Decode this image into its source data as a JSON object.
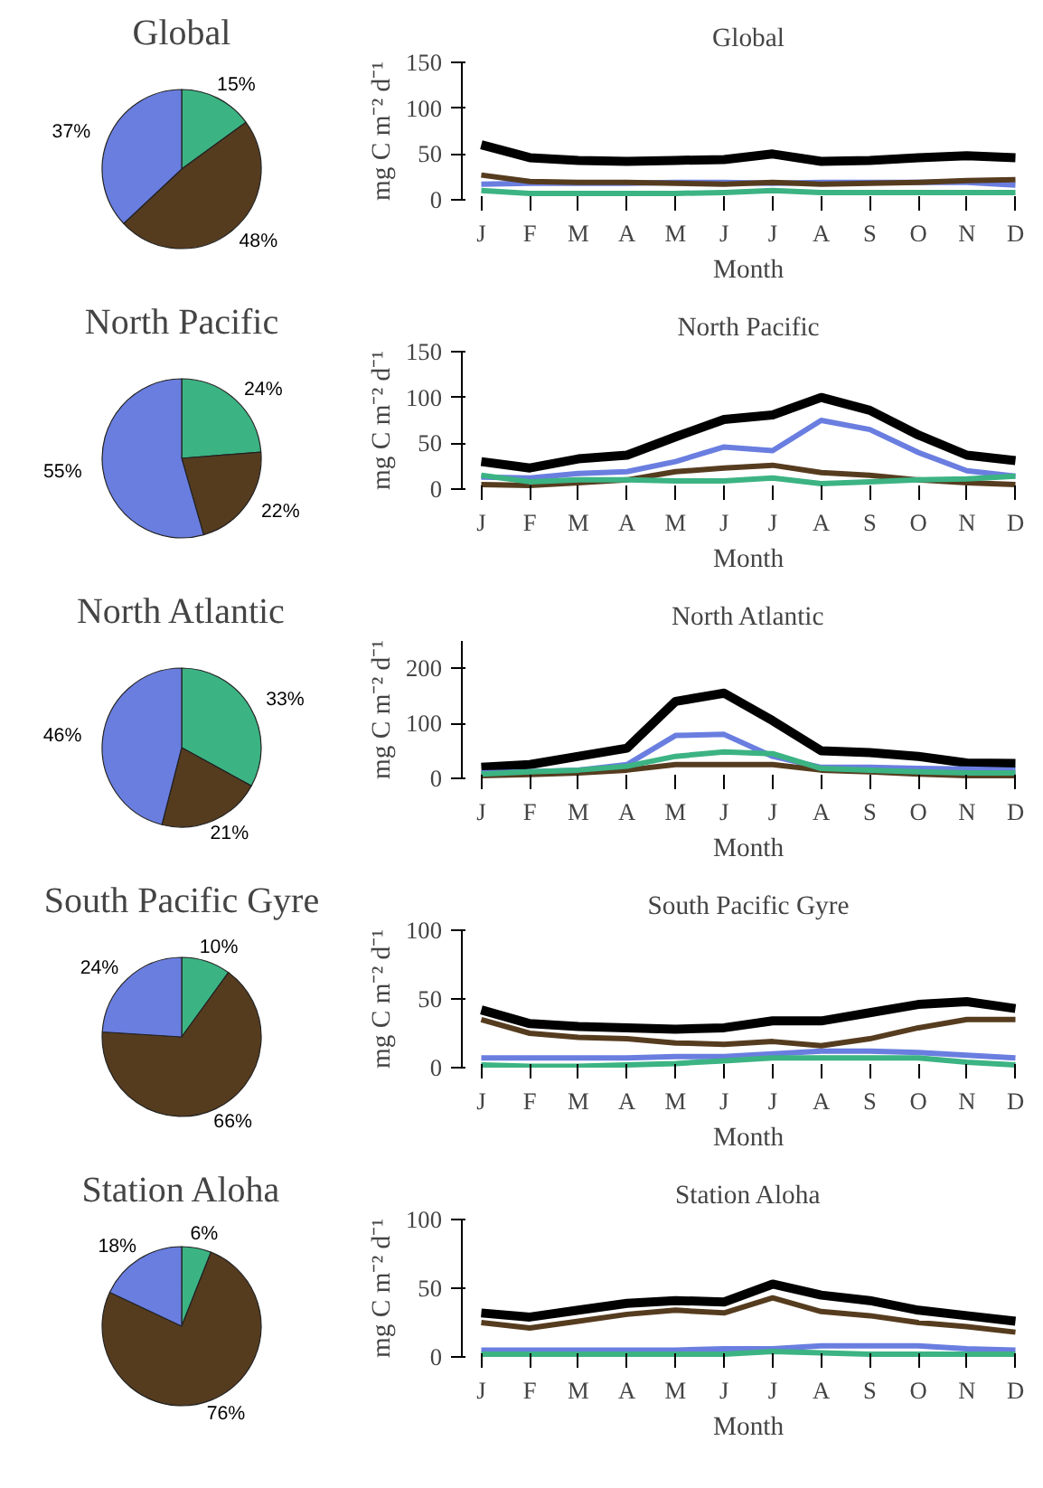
{
  "chart_data": [
    {
      "type": "pie",
      "title": "Global",
      "categories": [
        null,
        null,
        null
      ],
      "values": [
        15,
        48,
        37
      ],
      "colors": [
        "#3cb383",
        "#563c1f",
        "#6a7ee0"
      ],
      "value_labels": [
        "15%",
        "48%",
        "37%"
      ]
    },
    {
      "type": "line",
      "title": "Global",
      "xlabel": "Month",
      "ylabel": "mg C m⁻² d⁻¹",
      "categories": [
        "J",
        "F",
        "M",
        "A",
        "M",
        "J",
        "J",
        "A",
        "S",
        "O",
        "N",
        "D"
      ],
      "ylim": [
        0,
        150
      ],
      "yticks": [
        0,
        50,
        100,
        150
      ],
      "grid": false,
      "series": [
        {
          "color": "#000000",
          "values": [
            60,
            46,
            43,
            42,
            43,
            44,
            50,
            42,
            43,
            46,
            48,
            46
          ]
        },
        {
          "color": "#6a7ee0",
          "values": [
            17,
            18,
            18,
            18,
            19,
            19,
            18,
            19,
            19,
            19,
            19,
            16
          ]
        },
        {
          "color": "#563c1f",
          "values": [
            27,
            20,
            19,
            19,
            18,
            17,
            19,
            17,
            18,
            19,
            21,
            22
          ]
        },
        {
          "color": "#3cb383",
          "values": [
            10,
            7,
            7,
            7,
            7,
            8,
            10,
            8,
            8,
            8,
            8,
            8
          ]
        }
      ]
    },
    {
      "type": "pie",
      "title": "North Pacific",
      "categories": [
        null,
        null,
        null
      ],
      "values": [
        24,
        22,
        55
      ],
      "colors": [
        "#3cb383",
        "#563c1f",
        "#6a7ee0"
      ],
      "value_labels": [
        "24%",
        "22%",
        "55%"
      ]
    },
    {
      "type": "line",
      "title": "North Pacific",
      "xlabel": "Month",
      "ylabel": "mg C m⁻² d⁻¹",
      "categories": [
        "J",
        "F",
        "M",
        "A",
        "M",
        "J",
        "J",
        "A",
        "S",
        "O",
        "N",
        "D"
      ],
      "ylim": [
        0,
        150
      ],
      "yticks": [
        0,
        50,
        100,
        150
      ],
      "grid": false,
      "series": [
        {
          "color": "#000000",
          "values": [
            30,
            23,
            33,
            37,
            57,
            76,
            81,
            100,
            86,
            59,
            37,
            31
          ]
        },
        {
          "color": "#6a7ee0",
          "values": [
            13,
            12,
            17,
            19,
            30,
            46,
            42,
            75,
            65,
            40,
            20,
            14
          ]
        },
        {
          "color": "#563c1f",
          "values": [
            5,
            4,
            7,
            10,
            19,
            23,
            26,
            18,
            15,
            10,
            7,
            5
          ]
        },
        {
          "color": "#3cb383",
          "values": [
            15,
            8,
            10,
            10,
            9,
            9,
            12,
            6,
            8,
            10,
            11,
            14
          ]
        }
      ]
    },
    {
      "type": "pie",
      "title": "North Atlantic",
      "categories": [
        null,
        null,
        null
      ],
      "values": [
        33,
        21,
        46
      ],
      "colors": [
        "#3cb383",
        "#563c1f",
        "#6a7ee0"
      ],
      "value_labels": [
        "33%",
        "21%",
        "46%"
      ]
    },
    {
      "type": "line",
      "title": "North Atlantic",
      "xlabel": "Month",
      "ylabel": "mg C m⁻² d⁻¹",
      "categories": [
        "J",
        "F",
        "M",
        "A",
        "M",
        "J",
        "J",
        "A",
        "S",
        "O",
        "N",
        "D"
      ],
      "ylim": [
        0,
        250
      ],
      "yticks": [
        0,
        100,
        200
      ],
      "grid": false,
      "series": [
        {
          "color": "#000000",
          "values": [
            20,
            25,
            40,
            55,
            140,
            155,
            105,
            50,
            47,
            40,
            28,
            27
          ]
        },
        {
          "color": "#6a7ee0",
          "values": [
            10,
            12,
            15,
            25,
            78,
            80,
            40,
            20,
            20,
            18,
            17,
            15
          ]
        },
        {
          "color": "#563c1f",
          "values": [
            5,
            7,
            10,
            15,
            25,
            25,
            25,
            15,
            12,
            8,
            5,
            5
          ]
        },
        {
          "color": "#3cb383",
          "values": [
            8,
            12,
            15,
            22,
            40,
            48,
            45,
            18,
            15,
            12,
            10,
            10
          ]
        }
      ]
    },
    {
      "type": "pie",
      "title": "South Pacific Gyre",
      "categories": [
        null,
        null,
        null
      ],
      "values": [
        10,
        66,
        24
      ],
      "colors": [
        "#3cb383",
        "#563c1f",
        "#6a7ee0"
      ],
      "value_labels": [
        "10%",
        "66%",
        "24%"
      ]
    },
    {
      "type": "line",
      "title": "South Pacific Gyre",
      "xlabel": "Month",
      "ylabel": "mg C m⁻² d⁻¹",
      "categories": [
        "J",
        "F",
        "M",
        "A",
        "M",
        "J",
        "J",
        "A",
        "S",
        "O",
        "N",
        "D"
      ],
      "ylim": [
        0,
        100
      ],
      "yticks": [
        0,
        50,
        100
      ],
      "grid": false,
      "series": [
        {
          "color": "#000000",
          "values": [
            42,
            32,
            30,
            29,
            28,
            29,
            34,
            34,
            40,
            46,
            48,
            43
          ]
        },
        {
          "color": "#6a7ee0",
          "values": [
            7,
            7,
            7,
            7,
            8,
            8,
            10,
            12,
            12,
            11,
            9,
            7
          ]
        },
        {
          "color": "#563c1f",
          "values": [
            35,
            25,
            22,
            21,
            18,
            17,
            19,
            16,
            21,
            29,
            35,
            35
          ]
        },
        {
          "color": "#3cb383",
          "values": [
            2,
            1,
            1,
            2,
            3,
            5,
            7,
            7,
            7,
            7,
            4,
            2
          ]
        }
      ]
    },
    {
      "type": "pie",
      "title": "Station Aloha",
      "categories": [
        null,
        null,
        null
      ],
      "values": [
        6,
        76,
        18
      ],
      "colors": [
        "#3cb383",
        "#563c1f",
        "#6a7ee0"
      ],
      "value_labels": [
        "6%",
        "76%",
        "18%"
      ]
    },
    {
      "type": "line",
      "title": "Station Aloha",
      "xlabel": "Month",
      "ylabel": "mg C m⁻² d⁻¹",
      "categories": [
        "J",
        "F",
        "M",
        "A",
        "M",
        "J",
        "J",
        "A",
        "S",
        "O",
        "N",
        "D"
      ],
      "ylim": [
        0,
        100
      ],
      "yticks": [
        0,
        50,
        100
      ],
      "grid": false,
      "series": [
        {
          "color": "#000000",
          "values": [
            32,
            29,
            34,
            39,
            41,
            40,
            53,
            45,
            41,
            34,
            30,
            26
          ]
        },
        {
          "color": "#6a7ee0",
          "values": [
            5,
            5,
            5,
            5,
            5,
            6,
            6,
            8,
            8,
            8,
            6,
            5
          ]
        },
        {
          "color": "#563c1f",
          "values": [
            25,
            21,
            26,
            31,
            34,
            32,
            43,
            33,
            30,
            25,
            22,
            18
          ]
        },
        {
          "color": "#3cb383",
          "values": [
            2,
            2,
            2,
            2,
            2,
            2,
            4,
            3,
            2,
            2,
            2,
            2
          ]
        }
      ]
    }
  ]
}
